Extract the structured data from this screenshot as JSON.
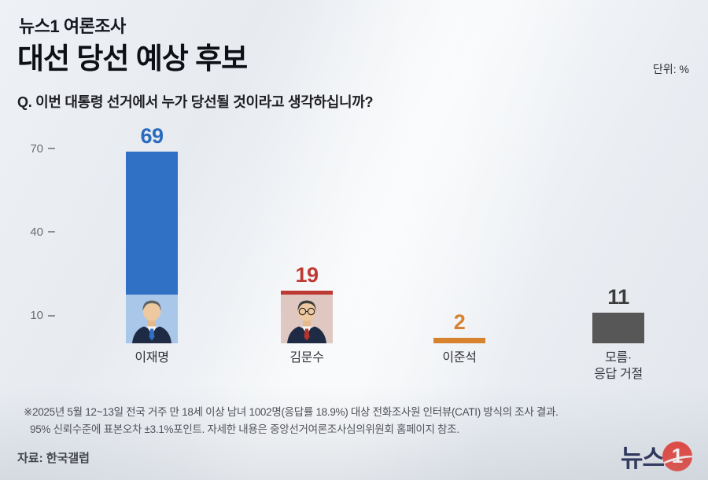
{
  "header": {
    "kicker": "뉴스1 여론조사",
    "title": "대선 당선 예상 후보",
    "unit": "단위: %",
    "question": "Q. 이번 대통령 선거에서 누가 당선될 것이라고 생각하십니까?"
  },
  "chart_data": {
    "type": "bar",
    "title": "대선 당선 예상 후보",
    "unit": "%",
    "categories": [
      "이재명",
      "김문수",
      "이준석",
      "모름·응답 거절"
    ],
    "values": [
      69,
      19,
      2,
      11
    ],
    "yticks": [
      70,
      40,
      10
    ],
    "ylim": [
      0,
      80
    ],
    "grid": false,
    "legend": "none",
    "candidates": [
      {
        "label_lines": [
          "이재명"
        ],
        "value": 69,
        "bar_color": "#3070c5",
        "value_color": "#2a6abf",
        "photo": {
          "bg": "#a9c7e9",
          "hair": "#5f6367",
          "tie": "#2f6fc4",
          "glasses": false
        }
      },
      {
        "label_lines": [
          "김문수"
        ],
        "value": 19,
        "bar_color": "#bd3a33",
        "value_color": "#bd3a33",
        "photo": {
          "bg": "#e0c8c2",
          "hair": "#3f3f3f",
          "tie": "#b5342e",
          "glasses": true
        }
      },
      {
        "label_lines": [
          "이준석"
        ],
        "value": 2,
        "bar_color": "#d6822f",
        "value_color": "#d6822f",
        "photo": null
      },
      {
        "label_lines": [
          "모름·",
          "응답 거절"
        ],
        "value": 11,
        "bar_color": "#575757",
        "value_color": "#3c3c3c",
        "photo": null
      }
    ]
  },
  "footnote": {
    "line1": "※2025년 5월 12~13일 전국 거주 만 18세 이상 남녀 1002명(응답률 18.9%) 대상 전화조사원 인터뷰(CATI) 방식의 조사 결과.",
    "line2": "95% 신뢰수준에 표본오차 ±3.1%포인트. 자세한 내용은 중앙선거여론조사심의위원회 홈페이지 참조.",
    "source": "자료: 한국갤럽"
  },
  "logo": {
    "text": "뉴스",
    "badge": "1"
  }
}
